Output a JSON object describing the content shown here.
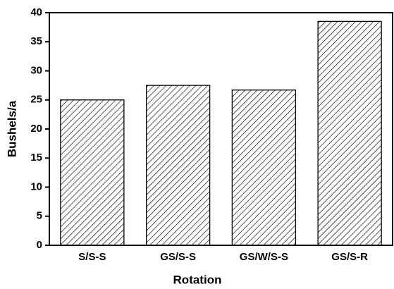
{
  "chart_data": {
    "type": "bar",
    "x_label": "Rotation",
    "y_label": "Bushels/a",
    "categories": [
      "S/S-S",
      "GS/S-S",
      "GS/W/S-S",
      "GS/S-R"
    ],
    "values": [
      25,
      27.5,
      26.7,
      38.5
    ],
    "color": "#000000",
    "ylim": [
      0,
      40
    ],
    "yticks": [
      0,
      5,
      10,
      15,
      20,
      25,
      30,
      35,
      40
    ],
    "grid": false
  }
}
